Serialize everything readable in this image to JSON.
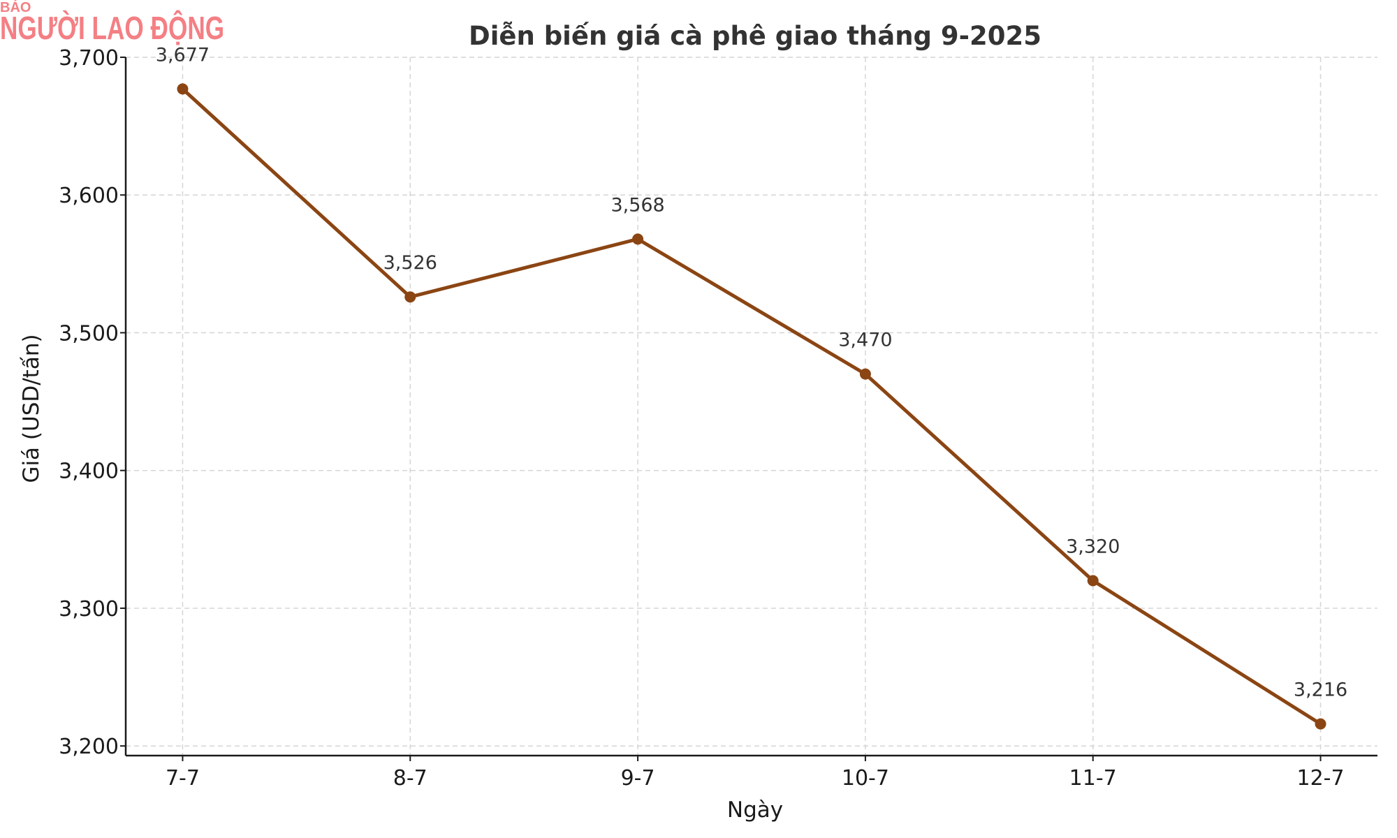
{
  "logo": {
    "line1": "BÁO",
    "line2": "NGƯỜI LAO ĐỘNG",
    "color": "#f47f84"
  },
  "chart_data": {
    "type": "line",
    "title": "Diễn biến giá cà phê giao tháng 9-2025",
    "xlabel": "Ngày",
    "ylabel": "Giá (USD/tấn)",
    "categories": [
      "7-7",
      "8-7",
      "9-7",
      "10-7",
      "11-7",
      "12-7"
    ],
    "series": [
      {
        "values": [
          3677,
          3526,
          3568,
          3470,
          3320,
          3216
        ],
        "color": "#8b4513"
      }
    ],
    "data_labels": [
      "3,677",
      "3,526",
      "3,568",
      "3,470",
      "3,320",
      "3,216"
    ],
    "yticks": [
      3200,
      3300,
      3400,
      3500,
      3600,
      3700
    ],
    "ytick_labels": [
      "3,200",
      "3,300",
      "3,400",
      "3,500",
      "3,600",
      "3,700"
    ],
    "ylim": [
      3193,
      3700
    ],
    "grid": true,
    "marker": "circle"
  }
}
